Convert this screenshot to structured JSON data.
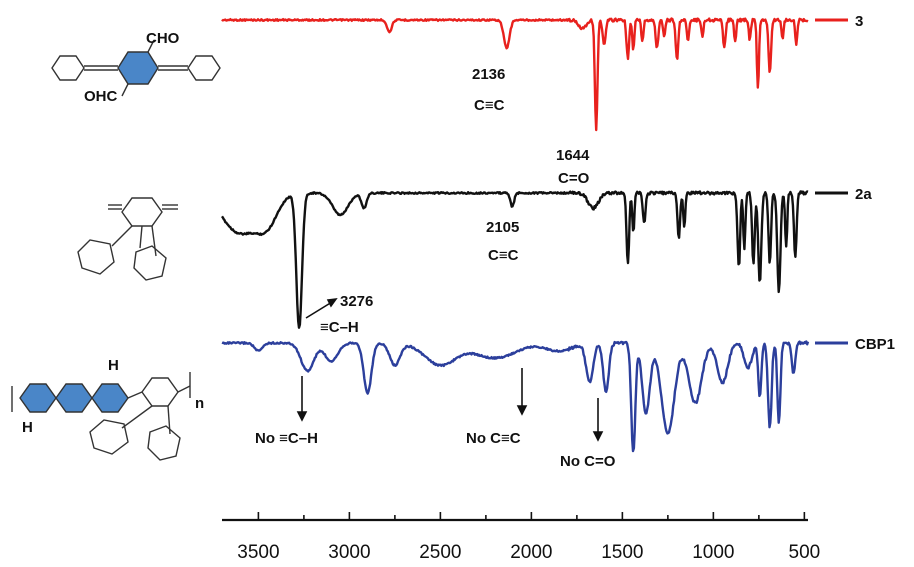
{
  "chart_data": {
    "type": "line",
    "title": "",
    "xlabel": "",
    "ylabel": "",
    "xlim": [
      3700,
      480
    ],
    "x_ticks": [
      3500,
      3000,
      2500,
      2000,
      1500,
      1000,
      500
    ],
    "series": [
      {
        "name": "3",
        "color": "#e8211d",
        "baseline": 20,
        "amp": 1,
        "dips": [
          {
            "x": 2780,
            "d": 12,
            "w": 18
          },
          {
            "x": 2136,
            "d": 28,
            "w": 22
          },
          {
            "x": 1720,
            "d": 8,
            "w": 30
          },
          {
            "x": 1644,
            "d": 110,
            "w": 10
          },
          {
            "x": 1600,
            "d": 25,
            "w": 12
          },
          {
            "x": 1470,
            "d": 38,
            "w": 10
          },
          {
            "x": 1440,
            "d": 30,
            "w": 8
          },
          {
            "x": 1390,
            "d": 22,
            "w": 8
          },
          {
            "x": 1310,
            "d": 28,
            "w": 10
          },
          {
            "x": 1270,
            "d": 18,
            "w": 8
          },
          {
            "x": 1200,
            "d": 40,
            "w": 10
          },
          {
            "x": 1140,
            "d": 22,
            "w": 8
          },
          {
            "x": 1060,
            "d": 16,
            "w": 8
          },
          {
            "x": 940,
            "d": 26,
            "w": 10
          },
          {
            "x": 880,
            "d": 22,
            "w": 8
          },
          {
            "x": 800,
            "d": 20,
            "w": 8
          },
          {
            "x": 755,
            "d": 70,
            "w": 8
          },
          {
            "x": 690,
            "d": 52,
            "w": 10
          },
          {
            "x": 620,
            "d": 18,
            "w": 8
          },
          {
            "x": 545,
            "d": 24,
            "w": 8
          }
        ]
      },
      {
        "name": "2a",
        "color": "#111111",
        "baseline": 193,
        "amp": 1,
        "dips": [
          {
            "x": 3600,
            "d": 40,
            "w": 140
          },
          {
            "x": 3450,
            "d": 25,
            "w": 80
          },
          {
            "x": 3276,
            "d": 135,
            "w": 22
          },
          {
            "x": 3050,
            "d": 22,
            "w": 60
          },
          {
            "x": 2920,
            "d": 15,
            "w": 20
          },
          {
            "x": 2105,
            "d": 14,
            "w": 14
          },
          {
            "x": 1660,
            "d": 15,
            "w": 40
          },
          {
            "x": 1470,
            "d": 70,
            "w": 10
          },
          {
            "x": 1440,
            "d": 40,
            "w": 8
          },
          {
            "x": 1380,
            "d": 30,
            "w": 10
          },
          {
            "x": 1190,
            "d": 45,
            "w": 10
          },
          {
            "x": 1160,
            "d": 35,
            "w": 8
          },
          {
            "x": 860,
            "d": 75,
            "w": 10
          },
          {
            "x": 830,
            "d": 55,
            "w": 8
          },
          {
            "x": 780,
            "d": 70,
            "w": 10
          },
          {
            "x": 745,
            "d": 90,
            "w": 12
          },
          {
            "x": 690,
            "d": 70,
            "w": 10
          },
          {
            "x": 640,
            "d": 100,
            "w": 12
          },
          {
            "x": 600,
            "d": 55,
            "w": 8
          },
          {
            "x": 550,
            "d": 65,
            "w": 10
          }
        ]
      },
      {
        "name": "CBP1",
        "color": "#2c3f9c",
        "baseline": 343,
        "amp": 1,
        "dips": [
          {
            "x": 3500,
            "d": 8,
            "w": 30
          },
          {
            "x": 3230,
            "d": 28,
            "w": 50
          },
          {
            "x": 3100,
            "d": 18,
            "w": 50
          },
          {
            "x": 2900,
            "d": 50,
            "w": 30
          },
          {
            "x": 2750,
            "d": 22,
            "w": 40
          },
          {
            "x": 2500,
            "d": 22,
            "w": 120
          },
          {
            "x": 2200,
            "d": 15,
            "w": 160
          },
          {
            "x": 1850,
            "d": 8,
            "w": 100
          },
          {
            "x": 1680,
            "d": 38,
            "w": 28
          },
          {
            "x": 1590,
            "d": 48,
            "w": 22
          },
          {
            "x": 1440,
            "d": 110,
            "w": 16
          },
          {
            "x": 1370,
            "d": 70,
            "w": 30
          },
          {
            "x": 1250,
            "d": 90,
            "w": 50
          },
          {
            "x": 1100,
            "d": 60,
            "w": 50
          },
          {
            "x": 950,
            "d": 40,
            "w": 40
          },
          {
            "x": 810,
            "d": 25,
            "w": 30
          },
          {
            "x": 745,
            "d": 55,
            "w": 12
          },
          {
            "x": 690,
            "d": 85,
            "w": 14
          },
          {
            "x": 640,
            "d": 80,
            "w": 12
          },
          {
            "x": 560,
            "d": 30,
            "w": 14
          }
        ]
      }
    ],
    "annotations": [
      {
        "id": "a3_2136",
        "lines": [
          "2136",
          "C≡C"
        ]
      },
      {
        "id": "a3_1644",
        "lines": [
          "1644",
          "C=O"
        ]
      },
      {
        "id": "a2_2105",
        "lines": [
          "2105",
          "C≡C"
        ]
      },
      {
        "id": "a2_3276",
        "lines": [
          "3276",
          "≡C–H"
        ]
      },
      {
        "id": "c_no_ch",
        "lines": [
          "No ≡C–H"
        ]
      },
      {
        "id": "c_no_cc",
        "lines": [
          "No C≡C"
        ]
      },
      {
        "id": "c_no_co",
        "lines": [
          "No C=O"
        ]
      }
    ],
    "structure_labels": {
      "cho": "CHO",
      "ohc": "OHC",
      "h1": "H",
      "h2": "H",
      "n": "n"
    }
  }
}
